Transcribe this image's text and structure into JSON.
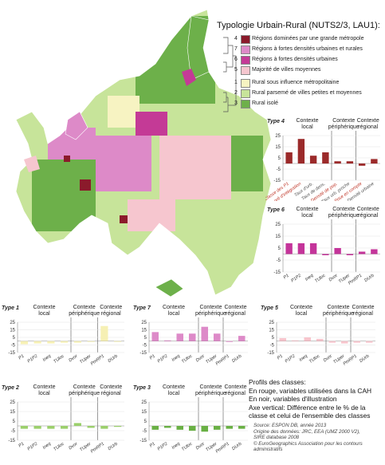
{
  "legend": {
    "title": "Typologie Urbain-Rural (NUTS2/3, LAU1):",
    "items": [
      {
        "num": "4",
        "label": "Régions dominées par une grande métropole",
        "color": "#8b1a2b"
      },
      {
        "num": "7",
        "label": "Régions à fortes densités urbaines et rurales",
        "color": "#dd8ac8"
      },
      {
        "num": "6",
        "label": "Régions à fortes densités urbaines",
        "color": "#c43a96"
      },
      {
        "num": "5",
        "label": "Majorité de villes moyennes",
        "color": "#f6c6cf"
      },
      {
        "num": "1",
        "label": "Rural sous influence métropolitaine",
        "color": "#f7f3c2"
      },
      {
        "num": "2",
        "label": "Rural parsemé de villes petites et moyennes",
        "color": "#c7e49a"
      },
      {
        "num": "3",
        "label": "Rural isolé",
        "color": "#6db04a"
      }
    ]
  },
  "panel_headers": {
    "local": [
      "Contexte",
      "local"
    ],
    "peripheral": [
      "Contexte",
      "périphérique"
    ],
    "regional": [
      "Contexte",
      "régional"
    ]
  },
  "colors": {
    "type4": "#9b2a2a",
    "type6": "#c4349a",
    "type1": "#f6f0b4",
    "type7": "#dd8ac8",
    "type5": "#f7c4cc",
    "type2": "#9bcf6c",
    "type3": "#69b044",
    "red_label": "#c0392b",
    "ink": "#333333"
  },
  "chart_data": [
    {
      "type": "bar",
      "title": "Type 4",
      "categories": [
        "Classe des P1",
        "Degré d'intégration",
        "Taux d'urb.",
        "Taux de dens.",
        "Densité de pop.",
        "Taux urb. proche",
        "Prise en compte",
        "Densité urbaine"
      ],
      "label_colors": [
        "#c0392b",
        "#c0392b",
        "#555555",
        "#555555",
        "#c0392b",
        "#555555",
        "#c0392b",
        "#555555"
      ],
      "values": [
        10,
        22,
        7,
        10,
        2,
        2,
        -2,
        4
      ],
      "ylim": [
        -15,
        25
      ],
      "yticks": [
        -15,
        -5,
        5,
        15,
        25
      ]
    },
    {
      "type": "bar",
      "title": "Type 6",
      "categories": [
        "P1",
        "P1P2",
        "Ineq",
        "TUloc",
        "Dvor",
        "TUper",
        "PmRP1",
        "DUrb"
      ],
      "values": [
        9,
        9,
        9,
        -1,
        5,
        -1,
        2,
        4
      ],
      "ylim": [
        -15,
        25
      ],
      "yticks": [
        -15,
        -5,
        5,
        15,
        25
      ]
    },
    {
      "type": "bar",
      "title": "Type 1",
      "categories": [
        "P1",
        "P1P2",
        "Ineq",
        "TUloc",
        "Dvor",
        "TUper",
        "PmRP1",
        "DUrb"
      ],
      "values": [
        -4,
        -3,
        -3,
        -2,
        -2,
        -1,
        20,
        -1
      ],
      "ylim": [
        -15,
        25
      ],
      "yticks": [
        -15,
        -5,
        5,
        15,
        25
      ]
    },
    {
      "type": "bar",
      "title": "Type 7",
      "categories": [
        "P1",
        "P1P2",
        "Ineq",
        "TUloc",
        "Dvor",
        "TUper",
        "PmRP1",
        "DUrb"
      ],
      "values": [
        12,
        1,
        10,
        10,
        19,
        10,
        -1,
        7
      ],
      "ylim": [
        -15,
        25
      ],
      "yticks": [
        -15,
        -5,
        5,
        15,
        25
      ]
    },
    {
      "type": "bar",
      "title": "Type 5",
      "categories": [
        "P1",
        "P1P2",
        "Ineq",
        "TUloc",
        "Dvor",
        "TUper",
        "PmRP1",
        "DUrb"
      ],
      "values": [
        4,
        1,
        5,
        3,
        -2,
        -3,
        -2,
        -2
      ],
      "ylim": [
        -15,
        25
      ],
      "yticks": [
        -15,
        -5,
        5,
        15,
        25
      ]
    },
    {
      "type": "bar",
      "title": "Type 2",
      "categories": [
        "P1",
        "P1P2",
        "Ineq",
        "TUloc",
        "Dvor",
        "TUper",
        "PmRP1",
        "DUrb"
      ],
      "values": [
        -3,
        -3,
        -3,
        -3,
        3,
        -2,
        -3,
        -1
      ],
      "ylim": [
        -15,
        25
      ],
      "yticks": [
        -15,
        -5,
        5,
        15,
        25
      ]
    },
    {
      "type": "bar",
      "title": "Type 3",
      "categories": [
        "P1",
        "P1P2",
        "Ineq",
        "TUloc",
        "Dvor",
        "TUper",
        "PmRP1",
        "DUrb"
      ],
      "values": [
        -4,
        -2,
        -4,
        -5,
        -6,
        -4,
        -3,
        -3
      ],
      "ylim": [
        -15,
        25
      ],
      "yticks": [
        -15,
        -5,
        5,
        15,
        25
      ]
    }
  ],
  "notes": {
    "line1": "Profils des classes:",
    "line2": "En rouge, variables utilisées dans la CAH",
    "line3": "En noir, variables d'illustration",
    "line4": "Axe vertical: Différence entre le % de la",
    "line5": "classe et celui de l'ensemble des classes"
  },
  "source": {
    "line1": "Source: ESPON DB, année 2013",
    "line2": "Origine des données: JRC, EEA (UMZ 2000 V2),",
    "line3": "SIRE database 2008",
    "line4": "© EuroGeographics Association pour les contours",
    "line5": "administratifs"
  }
}
